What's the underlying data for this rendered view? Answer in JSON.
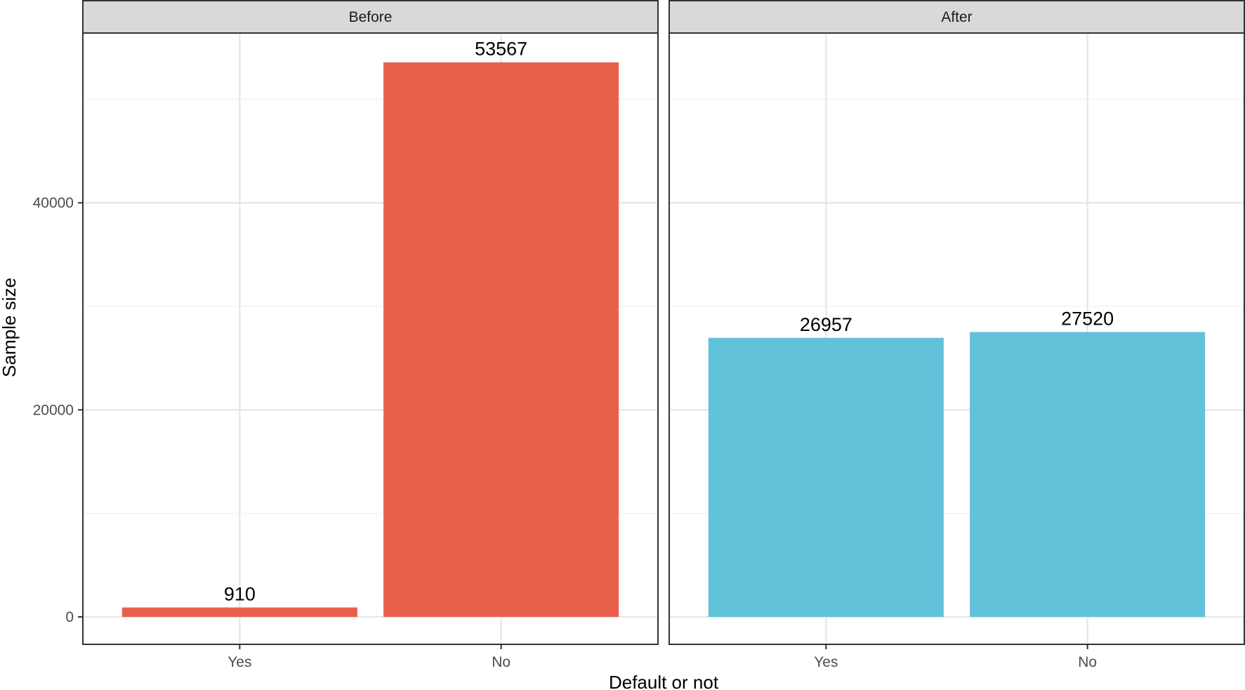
{
  "chart_data": {
    "type": "bar",
    "xlabel": "Default or not",
    "ylabel": "Sample size",
    "ylim": [
      -2650,
      56400
    ],
    "yticks": [
      0,
      20000,
      40000
    ],
    "ytick_labels": [
      "0",
      "20000",
      "40000"
    ],
    "grid": true,
    "categories": [
      "Yes",
      "No"
    ],
    "panels": [
      {
        "name": "Before",
        "values": [
          910,
          53567
        ],
        "color": "#e8604c"
      },
      {
        "name": "After",
        "values": [
          26957,
          27520
        ],
        "color": "#62c2da"
      }
    ]
  }
}
